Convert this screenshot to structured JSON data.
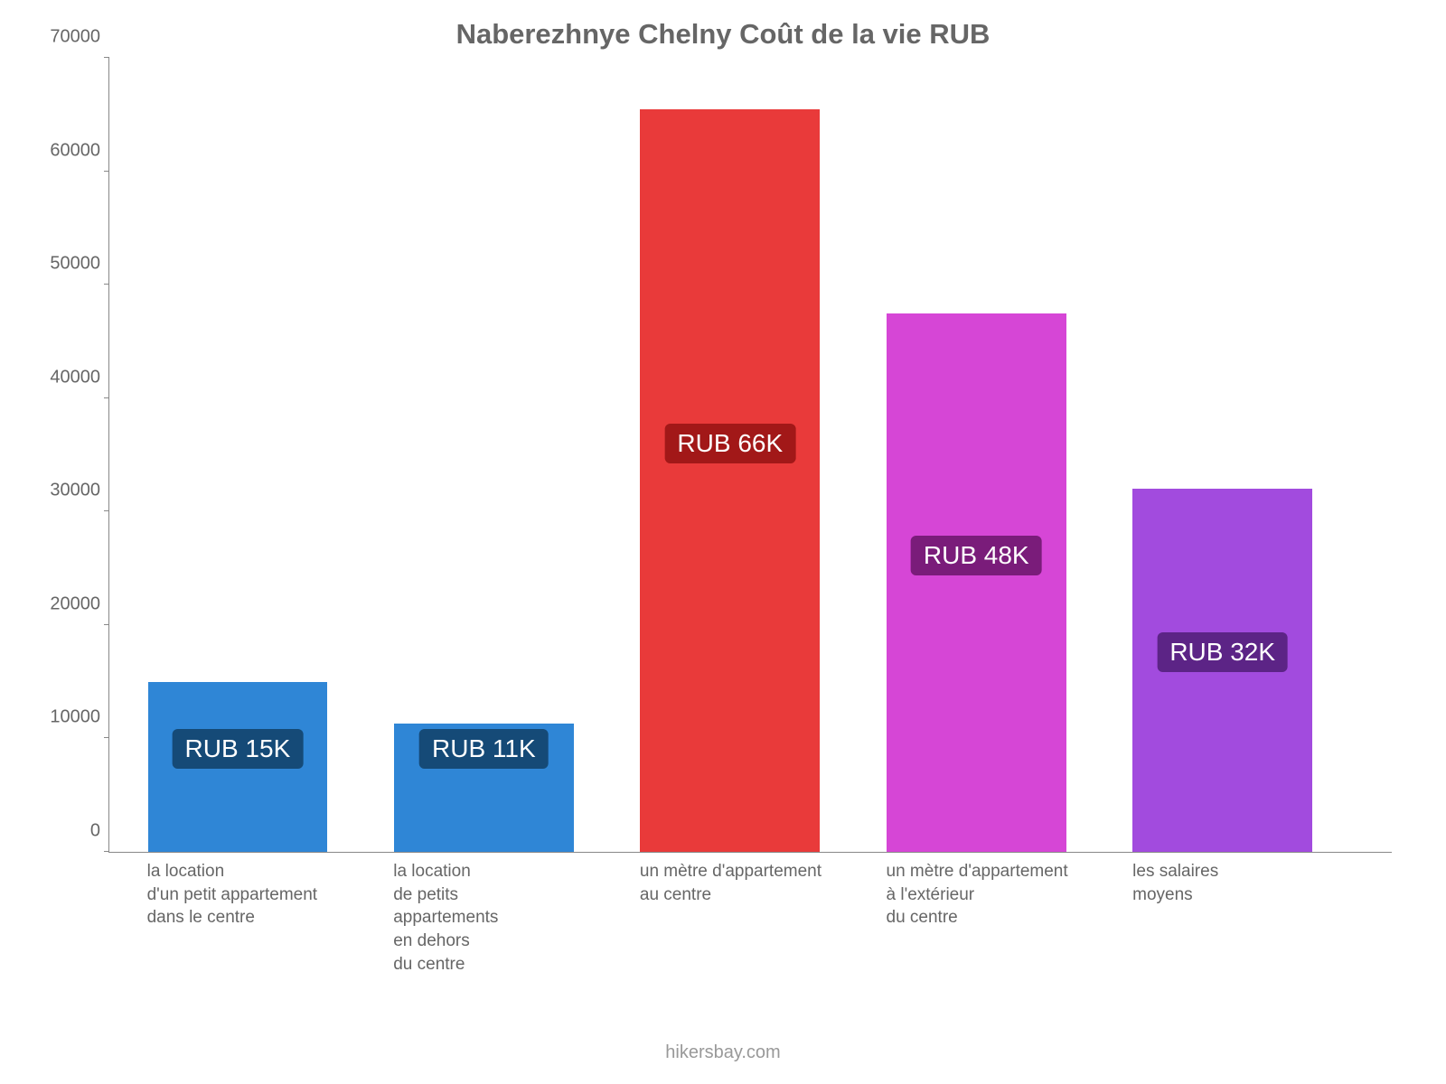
{
  "chart": {
    "type": "bar",
    "title": "Naberezhnye Chelny Coût de la vie RUB",
    "title_fontsize": 31,
    "title_color": "#666666",
    "background_color": "#ffffff",
    "axis_color": "#888888",
    "tick_label_color": "#666666",
    "tick_label_fontsize": 20,
    "x_label_fontsize": 19,
    "badge_fontsize": 28,
    "ylim": [
      0,
      70000
    ],
    "ytick_step": 10000,
    "yticks": [
      {
        "value": 0,
        "label": "0"
      },
      {
        "value": 10000,
        "label": "10000"
      },
      {
        "value": 20000,
        "label": "20000"
      },
      {
        "value": 30000,
        "label": "30000"
      },
      {
        "value": 40000,
        "label": "40000"
      },
      {
        "value": 50000,
        "label": "50000"
      },
      {
        "value": 60000,
        "label": "60000"
      },
      {
        "value": 70000,
        "label": "70000"
      }
    ],
    "bar_width_pct": 14,
    "bar_gap_pct": 5.2,
    "bar_start_pct": 3.0,
    "bars": [
      {
        "category": "la location\nd'un petit appartement\ndans le centre",
        "value": 15000,
        "display": "RUB 15K",
        "bar_color": "#2f86d6",
        "badge_bg": "#154a77",
        "badge_text": "#ffffff"
      },
      {
        "category": "la location\nde petits\nappartements\nen dehors\ndu centre",
        "value": 11300,
        "display": "RUB 11K",
        "bar_color": "#2f86d6",
        "badge_bg": "#154a77",
        "badge_text": "#ffffff"
      },
      {
        "category": "un mètre d'appartement\nau centre",
        "value": 65500,
        "display": "RUB 66K",
        "bar_color": "#e93a3a",
        "badge_bg": "#a21818",
        "badge_text": "#ffffff"
      },
      {
        "category": "un mètre d'appartement\nà l'extérieur\ndu centre",
        "value": 47500,
        "display": "RUB 48K",
        "bar_color": "#d646d6",
        "badge_bg": "#7a1c7a",
        "badge_text": "#ffffff"
      },
      {
        "category": "les salaires\nmoyens",
        "value": 32000,
        "display": "RUB 32K",
        "bar_color": "#a24bde",
        "badge_bg": "#5c2486",
        "badge_text": "#ffffff"
      }
    ],
    "credit": "hikersbay.com",
    "credit_color": "#999999",
    "credit_fontsize": 20
  }
}
